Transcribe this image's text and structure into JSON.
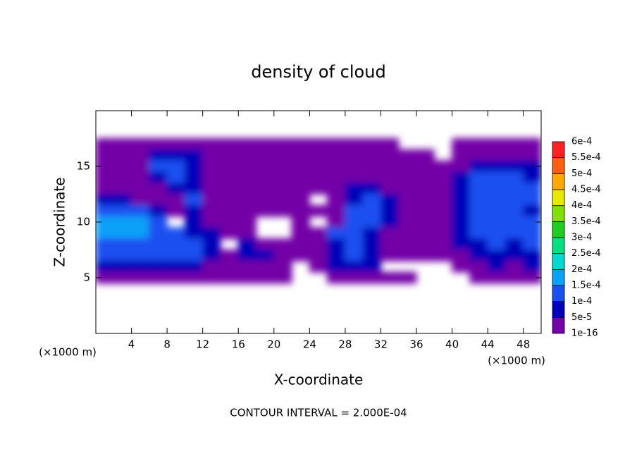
{
  "chart_data": {
    "type": "contour",
    "title": "density of cloud",
    "x_label": "X-coordinate",
    "y_label": "Z-coordinate",
    "x_unit_label": "(×1000 m)",
    "y_unit_label": "(×1000 m)",
    "annotation": "CONTOUR INTERVAL = 2.000E-04",
    "xlim": [
      0,
      50
    ],
    "xticks": [
      4,
      8,
      12,
      16,
      20,
      24,
      28,
      32,
      36,
      40,
      44,
      48
    ],
    "ylim": [
      0,
      20
    ],
    "yticks": [
      5,
      10,
      15
    ],
    "x": [
      1,
      3,
      5,
      7,
      9,
      11,
      13,
      15,
      17,
      19,
      21,
      23,
      25,
      27,
      29,
      31,
      33,
      35,
      37,
      39,
      41,
      43,
      45,
      47,
      49
    ],
    "y": [
      17,
      16,
      15,
      14,
      13,
      12,
      11,
      10,
      9,
      8,
      7,
      6,
      5
    ],
    "z": [
      [
        1e-05,
        1e-05,
        1e-05,
        1e-05,
        1e-05,
        1e-05,
        1e-05,
        1e-05,
        1e-05,
        1e-05,
        1e-05,
        1e-05,
        1e-05,
        1e-05,
        1e-05,
        1e-05,
        1e-05,
        null,
        null,
        null,
        1e-05,
        1e-05,
        1e-05,
        1e-05,
        1e-05
      ],
      [
        1e-05,
        1e-05,
        1e-05,
        7e-05,
        7e-05,
        7e-05,
        1e-05,
        1e-05,
        1e-05,
        1e-05,
        1e-05,
        1e-05,
        1e-05,
        1e-05,
        1e-05,
        1e-05,
        1e-05,
        1e-05,
        1e-05,
        null,
        1e-05,
        1e-05,
        1e-05,
        1e-05,
        1e-05
      ],
      [
        1e-05,
        1e-05,
        1e-05,
        0.00012,
        0.00012,
        7e-05,
        1e-05,
        1e-05,
        1e-05,
        1e-05,
        1e-05,
        1e-05,
        1e-05,
        1e-05,
        1e-05,
        1e-05,
        1e-05,
        1e-05,
        1e-05,
        1e-05,
        1e-05,
        7e-05,
        7e-05,
        7e-05,
        7e-05
      ],
      [
        1e-05,
        1e-05,
        1e-05,
        7e-05,
        0.00012,
        7e-05,
        1e-05,
        1e-05,
        1e-05,
        1e-05,
        1e-05,
        1e-05,
        1e-05,
        1e-05,
        1e-05,
        1e-05,
        1e-05,
        1e-05,
        1e-05,
        1e-05,
        7e-05,
        0.00012,
        0.00012,
        0.00012,
        7e-05
      ],
      [
        1e-05,
        1e-05,
        1e-05,
        1e-05,
        7e-05,
        7e-05,
        1e-05,
        1e-05,
        1e-05,
        1e-05,
        1e-05,
        1e-05,
        1e-05,
        1e-05,
        7e-05,
        7e-05,
        1e-05,
        1e-05,
        1e-05,
        1e-05,
        7e-05,
        0.00012,
        0.00012,
        0.00012,
        0.00012
      ],
      [
        7e-05,
        7e-05,
        1e-05,
        1e-05,
        1e-05,
        0.00012,
        1e-05,
        1e-05,
        1e-05,
        1e-05,
        1e-05,
        1e-05,
        null,
        1e-05,
        7e-05,
        0.00012,
        7e-05,
        1e-05,
        1e-05,
        1e-05,
        7e-05,
        0.00012,
        0.00012,
        0.00012,
        0.00012
      ],
      [
        0.00012,
        0.00012,
        0.00012,
        7e-05,
        1e-05,
        7e-05,
        1e-05,
        1e-05,
        1e-05,
        1e-05,
        1e-05,
        1e-05,
        1e-05,
        1e-05,
        0.00012,
        0.00012,
        7e-05,
        1e-05,
        1e-05,
        1e-05,
        7e-05,
        0.00012,
        0.00012,
        0.00012,
        7e-05
      ],
      [
        0.00017,
        0.00017,
        0.00017,
        0.00012,
        null,
        7e-05,
        1e-05,
        1e-05,
        1e-05,
        null,
        null,
        1e-05,
        null,
        1e-05,
        0.00012,
        0.00012,
        7e-05,
        1e-05,
        1e-05,
        1e-05,
        7e-05,
        0.00012,
        0.00012,
        0.00012,
        0.00012
      ],
      [
        0.00017,
        0.00017,
        0.00017,
        0.00012,
        0.00012,
        7e-05,
        7e-05,
        1e-05,
        1e-05,
        null,
        null,
        1e-05,
        1e-05,
        0.00012,
        0.00012,
        7e-05,
        1e-05,
        1e-05,
        1e-05,
        1e-05,
        7e-05,
        0.00012,
        0.00012,
        0.00012,
        0.00012
      ],
      [
        0.00012,
        0.00012,
        0.00012,
        0.00012,
        0.00012,
        0.00012,
        7e-05,
        null,
        7e-05,
        1e-05,
        1e-05,
        1e-05,
        1e-05,
        7e-05,
        0.00012,
        7e-05,
        1e-05,
        1e-05,
        1e-05,
        1e-05,
        7e-05,
        7e-05,
        0.00012,
        7e-05,
        0.00012
      ],
      [
        0.00012,
        0.00012,
        0.00012,
        0.00012,
        0.00012,
        0.00012,
        7e-05,
        1e-05,
        7e-05,
        7e-05,
        1e-05,
        1e-05,
        1e-05,
        7e-05,
        0.00012,
        7e-05,
        1e-05,
        1e-05,
        1e-05,
        1e-05,
        1e-05,
        7e-05,
        7e-05,
        7e-05,
        7e-05
      ],
      [
        7e-05,
        7e-05,
        7e-05,
        7e-05,
        7e-05,
        7e-05,
        1e-05,
        1e-05,
        1e-05,
        1e-05,
        1e-05,
        null,
        1e-05,
        7e-05,
        7e-05,
        7e-05,
        null,
        null,
        null,
        null,
        1e-05,
        1e-05,
        7e-05,
        1e-05,
        7e-05
      ],
      [
        1e-05,
        1e-05,
        1e-05,
        1e-05,
        1e-05,
        1e-05,
        1e-05,
        1e-05,
        1e-05,
        1e-05,
        1e-05,
        null,
        null,
        1e-05,
        1e-05,
        1e-05,
        1e-05,
        1e-05,
        null,
        null,
        null,
        1e-05,
        1e-05,
        1e-05,
        1e-05
      ]
    ],
    "levels": [
      {
        "value": 1e-16,
        "label": "1e-16"
      },
      {
        "value": 5e-05,
        "label": "5e-5"
      },
      {
        "value": 0.0001,
        "label": "1e-4"
      },
      {
        "value": 0.00015,
        "label": "1.5e-4"
      },
      {
        "value": 0.0002,
        "label": "2e-4"
      },
      {
        "value": 0.00025,
        "label": "2.5e-4"
      },
      {
        "value": 0.0003,
        "label": "3e-4"
      },
      {
        "value": 0.00035,
        "label": "3.5e-4"
      },
      {
        "value": 0.0004,
        "label": "4e-4"
      },
      {
        "value": 0.00045,
        "label": "4.5e-4"
      },
      {
        "value": 0.0005,
        "label": "5e-4"
      },
      {
        "value": 0.00055,
        "label": "5.5e-4"
      },
      {
        "value": 0.0006,
        "label": "6e-4"
      }
    ],
    "colors": [
      "#7200a6",
      "#0000b8",
      "#1a50f0",
      "#0aa0f8",
      "#00d8d0",
      "#00e080",
      "#20cc20",
      "#80e000",
      "#e8e800",
      "#ffa800",
      "#ff6010",
      "#ff2020"
    ]
  }
}
